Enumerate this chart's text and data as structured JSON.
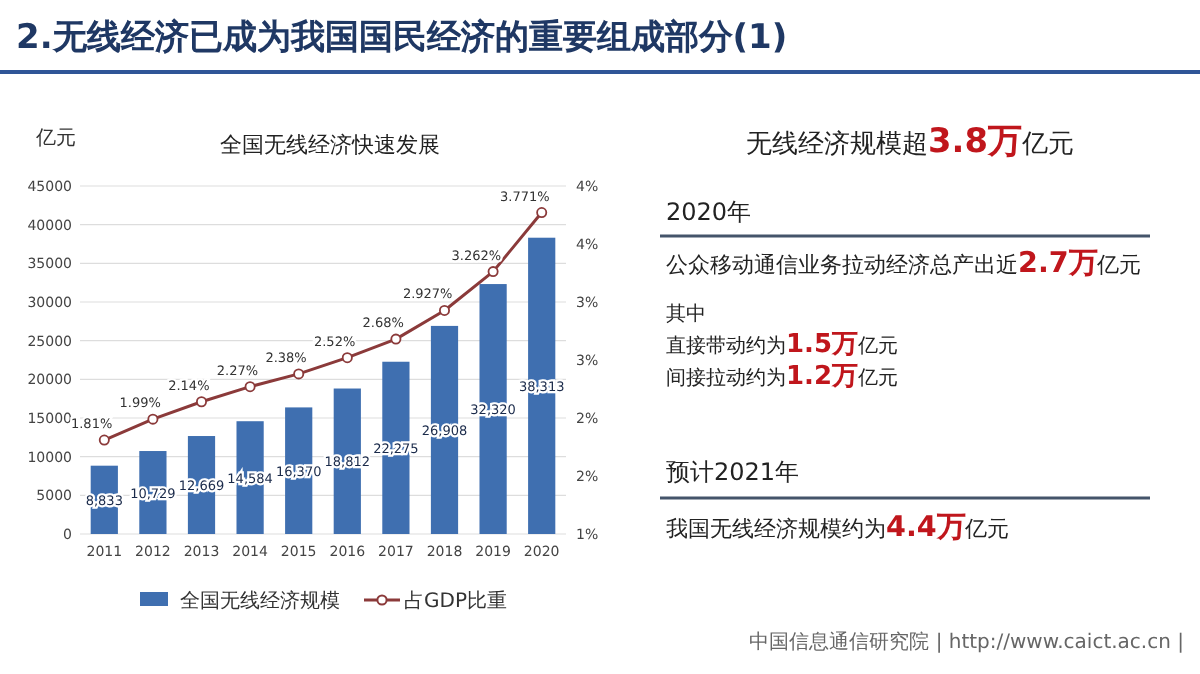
{
  "chart_data": [
    {
      "type": "bar",
      "title": "2.无线经济已成为我国国民经济的重要组成部分(1)",
      "subtitle": "全国无线经济快速发展",
      "ylabel": "亿元",
      "categories": [
        "2011",
        "2012",
        "2013",
        "2014",
        "2015",
        "2016",
        "2017",
        "2018",
        "2019",
        "2020"
      ],
      "series": [
        {
          "name": "全国无线经济规模",
          "color": "#3f6fb0",
          "values": [
            8833,
            10729,
            12669,
            14584,
            16370,
            18812,
            22275,
            26908,
            32320,
            38313
          ],
          "value_labels": [
            "8,833",
            "10,729",
            "12,669",
            "14,584",
            "16,370",
            "18,812",
            "22,275",
            "26,908",
            "32,320",
            "38,313"
          ]
        },
        {
          "name": "占GDP比重",
          "type": "line",
          "axis": "y2",
          "color": "#8b3a3a",
          "marker": "circle",
          "values": [
            1.81,
            1.99,
            2.14,
            2.27,
            2.38,
            2.52,
            2.68,
            2.927,
            3.262,
            3.771
          ],
          "value_labels": [
            "1.81%",
            "1.99%",
            "2.14%",
            "2.27%",
            "2.38%",
            "2.52%",
            "2.68%",
            "2.927%",
            "3.262%",
            "3.771%"
          ]
        }
      ],
      "ylim": [
        0,
        45000
      ],
      "yticks": [
        0,
        5000,
        10000,
        15000,
        20000,
        25000,
        30000,
        35000,
        40000,
        45000
      ],
      "y2lim": [
        1,
        4
      ],
      "y2ticks": [
        {
          "value": 1,
          "label": "1%"
        },
        {
          "value": 1.5,
          "label": "2%"
        },
        {
          "value": 2,
          "label": "2%"
        },
        {
          "value": 2.5,
          "label": "3%"
        },
        {
          "value": 3,
          "label": "3%"
        },
        {
          "value": 3.5,
          "label": "4%"
        },
        {
          "value": 4,
          "label": "4%"
        }
      ],
      "grid": "y",
      "legend": "bottom",
      "annotations": [
        "中国信息通信研究院 | http://www.caict.ac.cn |"
      ]
    },
    {
      "type": "other",
      "annotations": [
        "无线经济规模超**3.8万**亿元",
        "2020年",
        "公众移动通信业务拉动经济总产出近**2.7万**亿元",
        "其中",
        "直接带动约为**1.5万**亿元",
        "间接拉动约为**1.2万**亿元",
        "预计2021年",
        "我国无线经济规模约为**4.4万**亿元"
      ]
    }
  ]
}
